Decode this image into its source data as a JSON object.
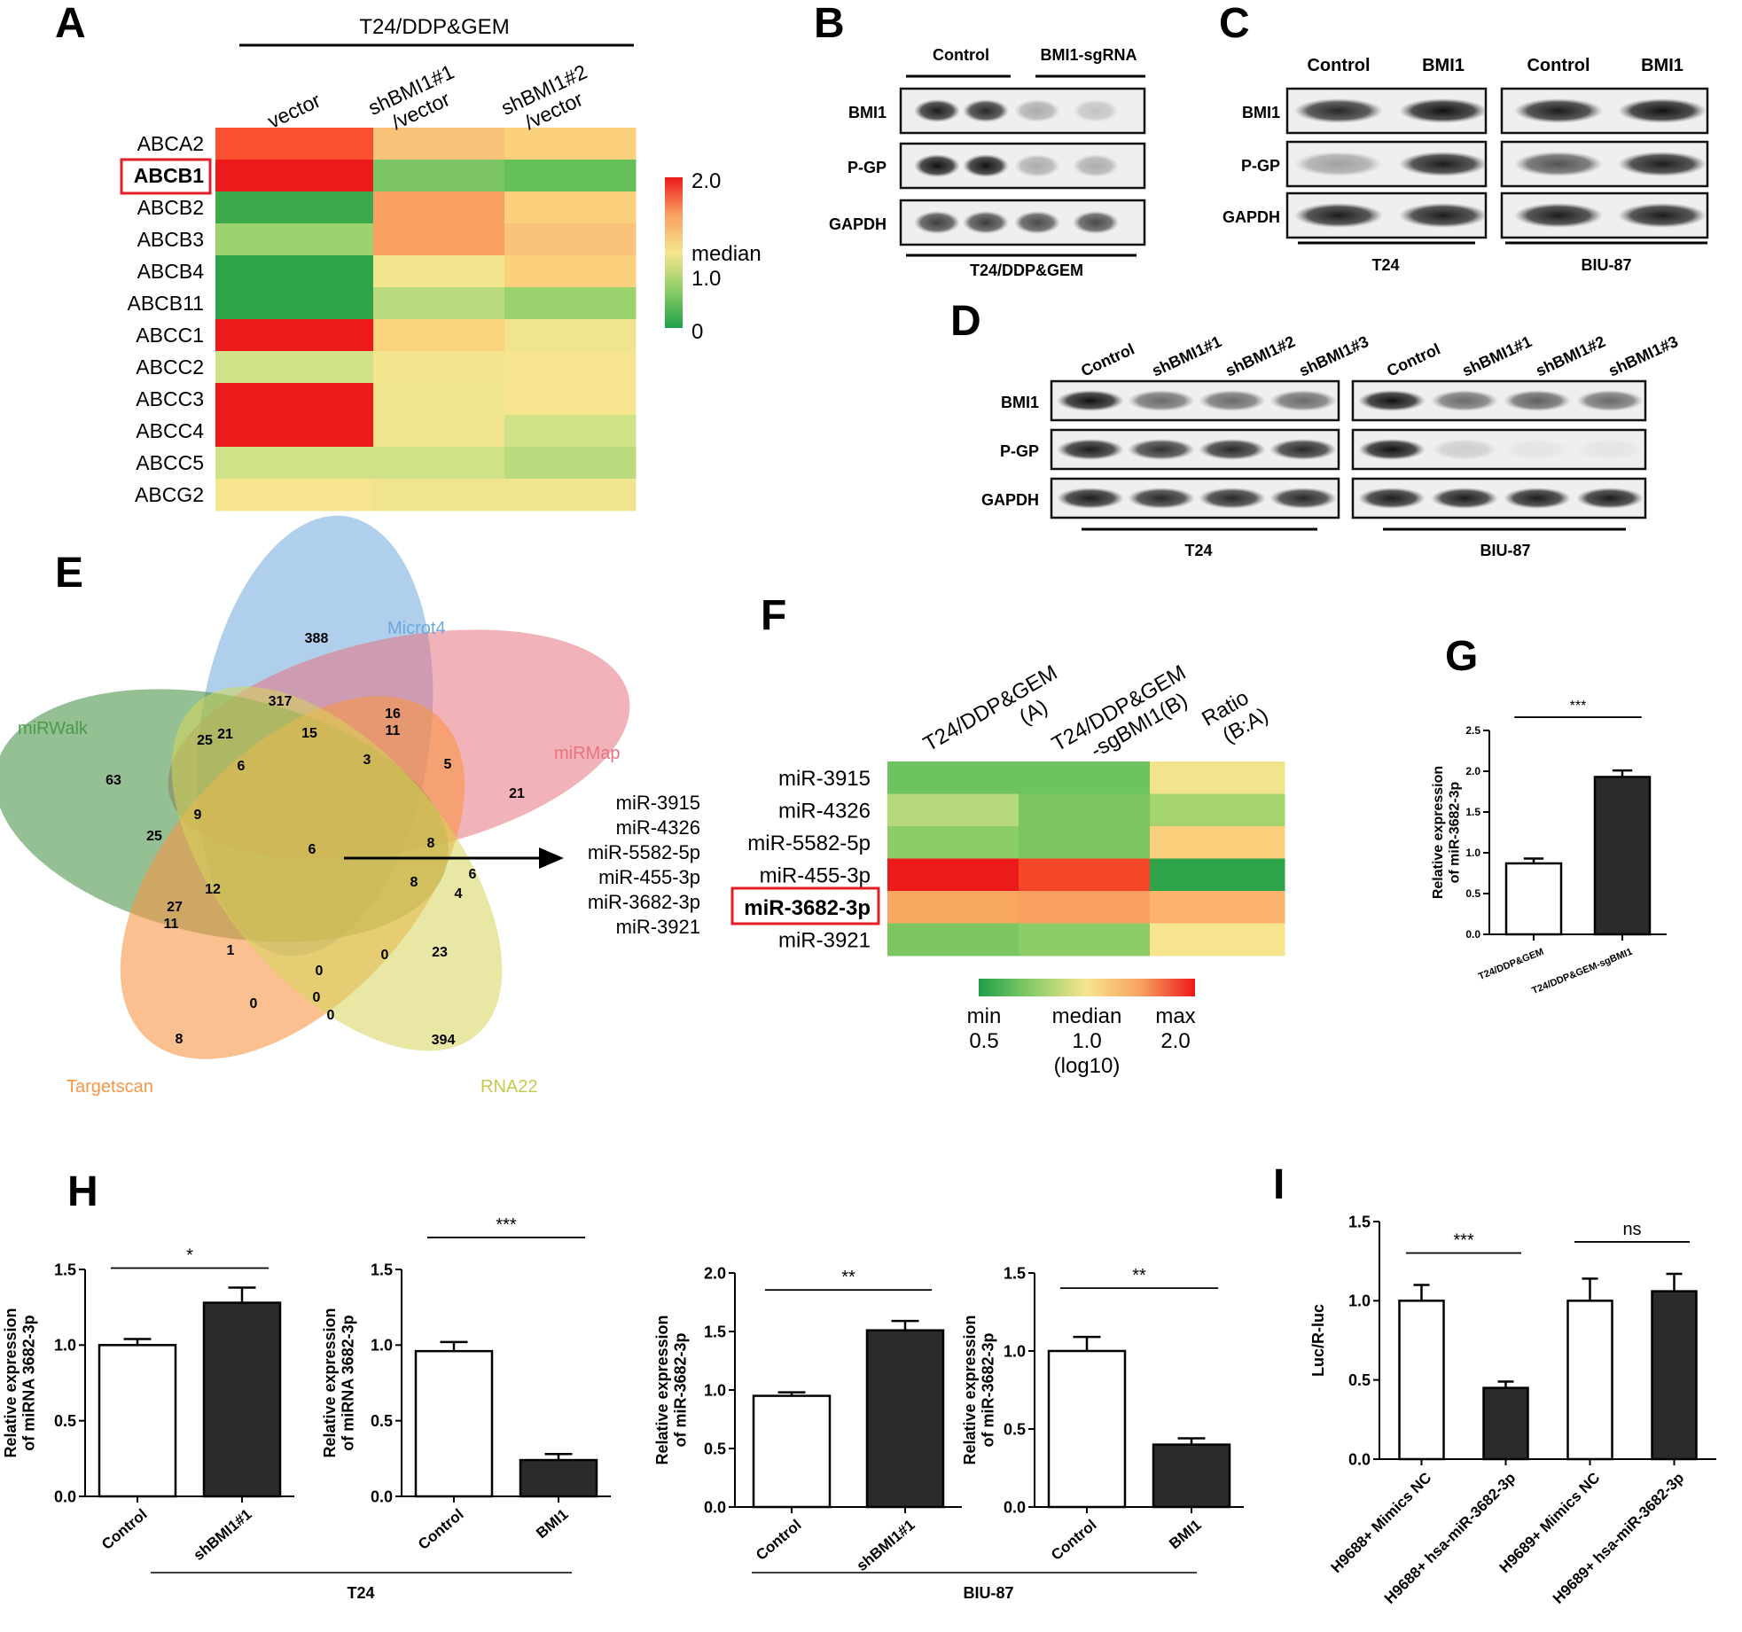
{
  "panels": {
    "A": {
      "letter": "A",
      "group_label": "T24/DDP&GEM",
      "columns": [
        "vector",
        "shBMI1#1\n/vector",
        "shBMI1#2\n/vector"
      ],
      "rows": [
        "ABCA2",
        "ABCB1",
        "ABCB2",
        "ABCB3",
        "ABCB4",
        "ABCB11",
        "ABCC1",
        "ABCC2",
        "ABCC3",
        "ABCC4",
        "ABCC5",
        "ABCG2"
      ],
      "highlighted_row": "ABCB1",
      "colorbar": {
        "max_label": "2.0",
        "mid_label": "median",
        "mid_value": "1.0",
        "min_label": "0"
      },
      "colors": {
        "ABCA2": [
          "#fb5030",
          "#fbc27a",
          "#fbd07c"
        ],
        "ABCB1": [
          "#ec1a1a",
          "#7cc565",
          "#66c05a"
        ],
        "ABCB2": [
          "#3aaa4a",
          "#f8a160",
          "#fbd07c"
        ],
        "ABCB3": [
          "#9cd26d",
          "#f8a160",
          "#fbc27a"
        ],
        "ABCB4": [
          "#2ea44a",
          "#f3e48e",
          "#fbd07c"
        ],
        "ABCB11": [
          "#2ea44a",
          "#b9da7d",
          "#9cd26d"
        ],
        "ABCC1": [
          "#ec1a1a",
          "#fbd37e",
          "#f0e48e"
        ],
        "ABCC2": [
          "#cfe288",
          "#f3e48e",
          "#f6e58e"
        ],
        "ABCC3": [
          "#ec1a1a",
          "#f0e48e",
          "#f6e58e"
        ],
        "ABCC4": [
          "#ec1a1a",
          "#f0e48e",
          "#cfe288"
        ],
        "ABCC5": [
          "#cfe288",
          "#cfe288",
          "#b9da7d"
        ],
        "ABCG2": [
          "#f6e58e",
          "#f0e48e",
          "#f0e48e"
        ]
      }
    },
    "B": {
      "letter": "B",
      "lanes": [
        "Control",
        "BMI1-sgRNA"
      ],
      "rows": [
        "BMI1",
        "P-GP",
        "GAPDH"
      ],
      "bottom_label": "T24/DDP&GEM"
    },
    "C": {
      "letter": "C",
      "lanes": [
        "Control",
        "BMI1",
        "Control",
        "BMI1"
      ],
      "rows": [
        "BMI1",
        "P-GP",
        "GAPDH"
      ],
      "group_labels": [
        "T24",
        "BIU-87"
      ]
    },
    "D": {
      "letter": "D",
      "lanes": [
        "Control",
        "shBMI1#1",
        "shBMI1#2",
        "shBMI1#3",
        "Control",
        "shBMI1#1",
        "shBMI1#2",
        "shBMI1#3"
      ],
      "rows": [
        "BMI1",
        "P-GP",
        "GAPDH"
      ],
      "group_labels": [
        "T24",
        "BIU-87"
      ]
    },
    "E": {
      "letter": "E",
      "set_labels": [
        "Microt4",
        "miRWalk",
        "miRMap",
        "Targetscan",
        "RNA22"
      ],
      "set_colors": [
        "#6fa8dc",
        "#4c9a4c",
        "#e8737f",
        "#f79646",
        "#d6d65a"
      ],
      "counts": [
        "388",
        "317",
        "16",
        "11",
        "25",
        "21",
        "15",
        "3",
        "5",
        "63",
        "6",
        "9",
        "25",
        "6",
        "8",
        "21",
        "12",
        "27",
        "11",
        "8",
        "4",
        "6",
        "1",
        "0",
        "0",
        "0",
        "0",
        "0",
        "23",
        "8",
        "394"
      ],
      "mirna_list": [
        "miR-3915",
        "miR-4326",
        "miR-5582-5p",
        "miR-455-3p",
        "miR-3682-3p",
        "miR-3921"
      ]
    },
    "F": {
      "letter": "F",
      "columns": [
        "T24/DDP&GEM\n(A)",
        "T24/DDP&GEM\n-sgBMI1(B)",
        "Ratio\n(B:A)"
      ],
      "rows": [
        "miR-3915",
        "miR-4326",
        "miR-5582-5p",
        "miR-455-3p",
        "miR-3682-3p",
        "miR-3921"
      ],
      "highlighted_row": "miR-3682-3p",
      "colors": [
        [
          "#6cc35f",
          "#6cc35f",
          "#f2e48c"
        ],
        [
          "#b5d97a",
          "#7cc662",
          "#a5d46f"
        ],
        [
          "#8ccd67",
          "#7cc662",
          "#fbd07c"
        ],
        [
          "#ec1a1a",
          "#f74628",
          "#2ea44a"
        ],
        [
          "#f9a862",
          "#f8a160",
          "#fbb36c"
        ],
        [
          "#7cc662",
          "#8ccd67",
          "#f6e58e"
        ]
      ],
      "legend": {
        "min": "min",
        "min_val": "0.5",
        "median": "median",
        "median_val": "1.0",
        "median_unit": "(log10)",
        "max": "max",
        "max_val": "2.0"
      }
    },
    "G": {
      "letter": "G"
    },
    "H": {
      "letter": "H",
      "group_labels": [
        "T24",
        "BIU-87"
      ]
    },
    "I": {
      "letter": "I"
    }
  },
  "chart_data": [
    {
      "panel": "G",
      "type": "bar",
      "categories": [
        "T24/DDP&GEM",
        "T24/DDP&GEM-sgBMI1"
      ],
      "values": [
        0.87,
        1.93
      ],
      "errors": [
        0.06,
        0.08
      ],
      "ylabel": "Relative expression\nof miR-3682-3p",
      "ylim": [
        0,
        2.5
      ],
      "yticks": [
        "0.0",
        "0.5",
        "1.0",
        "1.5",
        "2.0",
        "2.5"
      ],
      "significance": "***"
    },
    {
      "panel": "H1",
      "type": "bar",
      "categories": [
        "Control",
        "shBMI1#1"
      ],
      "values": [
        1.0,
        1.28
      ],
      "errors": [
        0.04,
        0.1
      ],
      "ylabel": "Relative expression\nof miRNA 3682-3p",
      "ylim": [
        0,
        1.5
      ],
      "yticks": [
        "0.0",
        "0.5",
        "1.0",
        "1.5"
      ],
      "significance": "*"
    },
    {
      "panel": "H2",
      "type": "bar",
      "categories": [
        "Control",
        "BMI1"
      ],
      "values": [
        0.96,
        0.24
      ],
      "errors": [
        0.06,
        0.04
      ],
      "ylabel": "Relative expression\nof miRNA 3682-3p",
      "ylim": [
        0,
        1.5
      ],
      "yticks": [
        "0.0",
        "0.5",
        "1.0",
        "1.5"
      ],
      "significance": "***"
    },
    {
      "panel": "H3",
      "type": "bar",
      "categories": [
        "Control",
        "shBMI1#1"
      ],
      "values": [
        0.95,
        1.51
      ],
      "errors": [
        0.03,
        0.08
      ],
      "ylabel": "Relative expression\nof miR-3682-3p",
      "ylim": [
        0,
        2.0
      ],
      "yticks": [
        "0.0",
        "0.5",
        "1.0",
        "1.5",
        "2.0"
      ],
      "significance": "**"
    },
    {
      "panel": "H4",
      "type": "bar",
      "categories": [
        "Control",
        "BMI1"
      ],
      "values": [
        1.0,
        0.4
      ],
      "errors": [
        0.09,
        0.04
      ],
      "ylabel": "Relative expression\nof miR-3682-3p",
      "ylim": [
        0,
        1.5
      ],
      "yticks": [
        "0.0",
        "0.5",
        "1.0",
        "1.5"
      ],
      "significance": "**"
    },
    {
      "panel": "I",
      "type": "bar",
      "categories": [
        "H9688+ Mimics NC",
        "H9688+ hsa-miR-3682-3p",
        "H9689+ Mimics NC",
        "H9689+ hsa-miR-3682-3p"
      ],
      "values": [
        1.0,
        0.45,
        1.0,
        1.06
      ],
      "errors": [
        0.1,
        0.04,
        0.14,
        0.11
      ],
      "ylabel": "Luc/R-luc",
      "ylim": [
        0,
        1.5
      ],
      "yticks": [
        "0.0",
        "0.5",
        "1.0",
        "1.5"
      ],
      "significance": [
        "***",
        "ns"
      ]
    }
  ]
}
